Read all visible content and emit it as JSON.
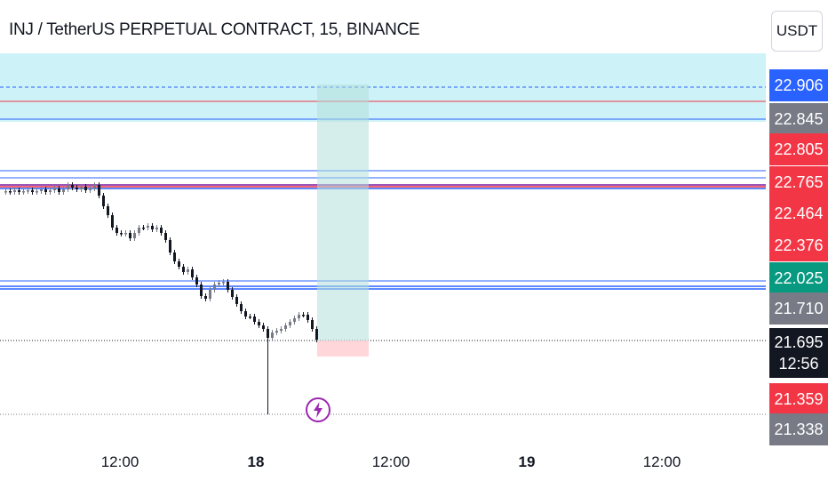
{
  "header": {
    "title": "INJ / TetherUS PERPETUAL CONTRACT, 15, BINANCE",
    "currency_button": "USDT"
  },
  "price_axis": {
    "tags": [
      {
        "id": "p22906",
        "price": 22.906,
        "label": "22.906",
        "bg": "#2962ff"
      },
      {
        "id": "p22845",
        "price": 22.845,
        "label": "22.845",
        "bg": "#787b86"
      },
      {
        "id": "p22805",
        "price": 22.805,
        "label": "22.805",
        "bg": "#f23645"
      },
      {
        "id": "p22765",
        "price": 22.765,
        "label": "22.765",
        "bg": "#f23645"
      },
      {
        "id": "p22464",
        "price": 22.464,
        "label": "22.464",
        "bg": "#f23645"
      },
      {
        "id": "p22376",
        "price": 22.376,
        "label": "22.376",
        "bg": "#f23645"
      },
      {
        "id": "p22025",
        "price": 22.025,
        "label": "22.025",
        "bg": "#089981"
      },
      {
        "id": "p21710",
        "price": 21.71,
        "label": "21.710",
        "bg": "#787b86"
      },
      {
        "id": "p21359",
        "price": 21.359,
        "label": "21.359",
        "bg": "#f23645"
      },
      {
        "id": "p21338",
        "price": 21.338,
        "label": "21.338",
        "bg": "#787b86"
      }
    ],
    "last_price": {
      "price": 21.695,
      "label": "21.695",
      "countdown": "12:56",
      "bg": "#131722"
    }
  },
  "time_axis": {
    "labels": [
      {
        "id": "t1",
        "text": "12:00",
        "bold": false
      },
      {
        "id": "t2",
        "text": "18",
        "bold": true
      },
      {
        "id": "t3",
        "text": "12:00",
        "bold": false
      },
      {
        "id": "t4",
        "text": "19",
        "bold": true
      },
      {
        "id": "t5",
        "text": "12:00",
        "bold": false
      }
    ]
  },
  "colors": {
    "up": "#787b86",
    "down": "#131722",
    "blue_line": "#2962ff",
    "red_line": "#f23645",
    "purple_line": "#7b1fa2",
    "target_zone": "#b2ebf2",
    "position_profit": "#b2dfdb",
    "position_loss": "#ffcdd2"
  },
  "icons": {
    "event": "lightning-bolt-icon"
  }
}
